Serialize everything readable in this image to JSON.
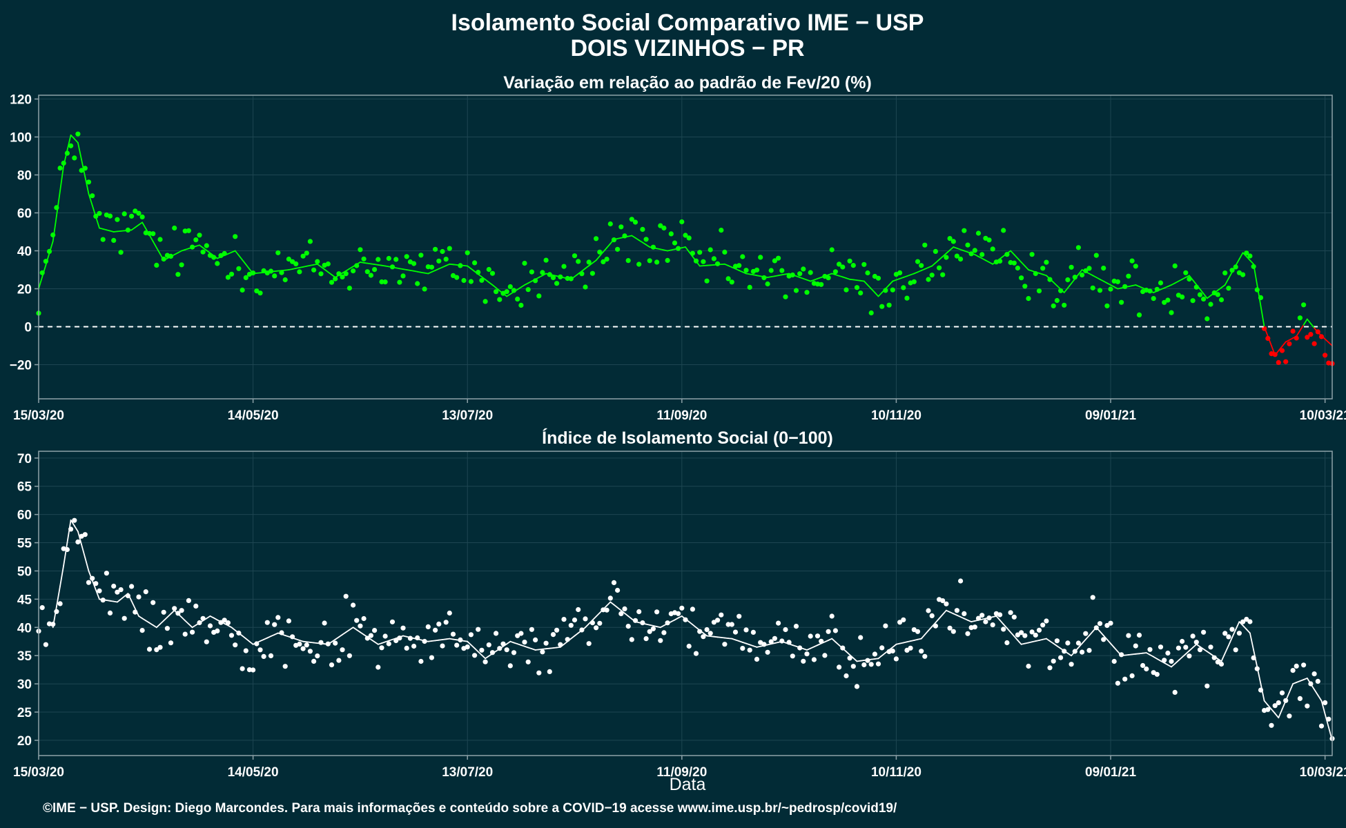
{
  "title_line1": "Isolamento Social Comparativo IME − USP",
  "title_line2": "DOIS VIZINHOS − PR",
  "xlabel": "Data",
  "footer": "©IME − USP. Design: Diego Marcondes. Para mais informações e conteúdo sobre a COVID−19 acesse www.ime.usp.br/~pedrosp/covid19/",
  "colors": {
    "background": "#022b36",
    "positive": "#00ff00",
    "negative": "#ff0000",
    "index": "#ffffff",
    "grid": "#1e4652",
    "frame": "#8fa3a9"
  },
  "chart_data": [
    {
      "type": "scatter",
      "title": "Variação em relação ao padrão de Fev/20 (%)",
      "xlabel": "",
      "ylabel": "",
      "x_start": "15/03/20",
      "x_end": "12/03/21",
      "x_ticks": [
        "15/03/20",
        "14/05/20",
        "13/07/20",
        "11/09/20",
        "10/11/20",
        "09/01/21",
        "10/03/21"
      ],
      "ylim": [
        -38,
        122
      ],
      "y_ticks": [
        "−20",
        "0",
        "20",
        "40",
        "60",
        "80",
        "100",
        "120"
      ],
      "reference_line": 0,
      "grid": true,
      "color_rule": "points and smoothed line are green when value >= 0, red when value < 0",
      "moving_average_anchors": [
        [
          "15/03/20",
          20
        ],
        [
          "19/03/20",
          45
        ],
        [
          "22/03/20",
          85
        ],
        [
          "24/03/20",
          101
        ],
        [
          "26/03/20",
          97
        ],
        [
          "29/03/20",
          70
        ],
        [
          "01/04/20",
          52
        ],
        [
          "05/04/20",
          50
        ],
        [
          "10/04/20",
          51
        ],
        [
          "13/04/20",
          55
        ],
        [
          "16/04/20",
          45
        ],
        [
          "19/04/20",
          35
        ],
        [
          "24/04/20",
          40
        ],
        [
          "29/04/20",
          43
        ],
        [
          "04/05/20",
          36
        ],
        [
          "09/05/20",
          40
        ],
        [
          "14/05/20",
          28
        ],
        [
          "24/05/20",
          30
        ],
        [
          "01/06/20",
          33
        ],
        [
          "06/06/20",
          26
        ],
        [
          "13/06/20",
          34
        ],
        [
          "20/06/20",
          32
        ],
        [
          "26/06/20",
          30
        ],
        [
          "02/07/20",
          28
        ],
        [
          "08/07/20",
          33
        ],
        [
          "13/07/20",
          32
        ],
        [
          "20/07/20",
          22
        ],
        [
          "24/07/20",
          16
        ],
        [
          "29/07/20",
          22
        ],
        [
          "04/08/20",
          28
        ],
        [
          "11/08/20",
          25
        ],
        [
          "18/08/20",
          35
        ],
        [
          "23/08/20",
          46
        ],
        [
          "28/08/20",
          48
        ],
        [
          "02/09/20",
          42
        ],
        [
          "07/09/20",
          40
        ],
        [
          "12/09/20",
          42
        ],
        [
          "16/09/20",
          32
        ],
        [
          "23/09/20",
          33
        ],
        [
          "29/09/20",
          28
        ],
        [
          "05/10/20",
          26
        ],
        [
          "11/10/20",
          28
        ],
        [
          "17/10/20",
          24
        ],
        [
          "23/10/20",
          28
        ],
        [
          "28/10/20",
          25
        ],
        [
          "01/11/20",
          24
        ],
        [
          "05/11/20",
          16
        ],
        [
          "09/11/20",
          24
        ],
        [
          "15/11/20",
          28
        ],
        [
          "20/11/20",
          32
        ],
        [
          "26/11/20",
          42
        ],
        [
          "02/12/20",
          38
        ],
        [
          "07/12/20",
          33
        ],
        [
          "12/12/20",
          40
        ],
        [
          "17/12/20",
          30
        ],
        [
          "22/12/20",
          27
        ],
        [
          "27/12/20",
          18
        ],
        [
          "01/01/21",
          30
        ],
        [
          "06/01/21",
          25
        ],
        [
          "11/01/21",
          20
        ],
        [
          "16/01/21",
          22
        ],
        [
          "21/01/21",
          18
        ],
        [
          "26/01/21",
          22
        ],
        [
          "31/01/21",
          27
        ],
        [
          "05/02/21",
          15
        ],
        [
          "10/02/21",
          22
        ],
        [
          "15/02/21",
          39
        ],
        [
          "18/02/21",
          33
        ],
        [
          "21/02/21",
          0
        ],
        [
          "24/02/21",
          -15
        ],
        [
          "27/02/21",
          -8
        ],
        [
          "02/03/21",
          -5
        ],
        [
          "05/03/21",
          4
        ],
        [
          "08/03/21",
          -3
        ],
        [
          "12/03/21",
          -10
        ]
      ]
    },
    {
      "type": "scatter",
      "title": "Índice de Isolamento Social (0−100)",
      "xlabel": "Data",
      "ylabel": "",
      "x_start": "15/03/20",
      "x_end": "12/03/21",
      "x_ticks": [
        "15/03/20",
        "14/05/20",
        "13/07/20",
        "11/09/20",
        "10/11/20",
        "09/01/21",
        "10/03/21"
      ],
      "ylim": [
        17.3,
        71.2
      ],
      "y_ticks": [
        "20",
        "25",
        "30",
        "35",
        "40",
        "45",
        "50",
        "55",
        "60",
        "65",
        "70"
      ],
      "grid": true,
      "moving_average_anchors": [
        [
          "19/03/20",
          40
        ],
        [
          "22/03/20",
          51
        ],
        [
          "24/03/20",
          59
        ],
        [
          "26/03/20",
          57
        ],
        [
          "29/03/20",
          50
        ],
        [
          "01/04/20",
          45
        ],
        [
          "06/04/20",
          44.5
        ],
        [
          "09/04/20",
          46
        ],
        [
          "12/04/20",
          42
        ],
        [
          "17/04/20",
          40
        ],
        [
          "22/04/20",
          43
        ],
        [
          "27/04/20",
          40
        ],
        [
          "02/05/20",
          42
        ],
        [
          "08/05/20",
          40
        ],
        [
          "14/05/20",
          37
        ],
        [
          "21/05/20",
          39
        ],
        [
          "28/05/20",
          37.5
        ],
        [
          "04/06/20",
          37
        ],
        [
          "11/06/20",
          40
        ],
        [
          "18/06/20",
          37
        ],
        [
          "25/06/20",
          38.5
        ],
        [
          "02/07/20",
          37.5
        ],
        [
          "08/07/20",
          38
        ],
        [
          "13/07/20",
          37.5
        ],
        [
          "18/07/20",
          34.5
        ],
        [
          "25/07/20",
          37.5
        ],
        [
          "01/08/20",
          36
        ],
        [
          "08/08/20",
          36.5
        ],
        [
          "15/08/20",
          40
        ],
        [
          "22/08/20",
          44.5
        ],
        [
          "29/08/20",
          41
        ],
        [
          "05/09/20",
          40
        ],
        [
          "11/09/20",
          42
        ],
        [
          "18/09/20",
          38.5
        ],
        [
          "25/09/20",
          38
        ],
        [
          "02/10/20",
          36.5
        ],
        [
          "09/10/20",
          37.5
        ],
        [
          "16/10/20",
          36
        ],
        [
          "23/10/20",
          38
        ],
        [
          "30/10/20",
          34
        ],
        [
          "05/11/20",
          34.5
        ],
        [
          "10/11/20",
          37
        ],
        [
          "17/11/20",
          38
        ],
        [
          "24/11/20",
          43
        ],
        [
          "01/12/20",
          41
        ],
        [
          "08/12/20",
          42
        ],
        [
          "15/12/20",
          37
        ],
        [
          "22/12/20",
          38
        ],
        [
          "29/12/20",
          35
        ],
        [
          "05/01/21",
          40
        ],
        [
          "12/01/21",
          35
        ],
        [
          "19/01/21",
          35.5
        ],
        [
          "26/01/21",
          33
        ],
        [
          "02/02/21",
          37
        ],
        [
          "09/02/21",
          34
        ],
        [
          "14/02/21",
          41
        ],
        [
          "17/02/21",
          39
        ],
        [
          "21/02/21",
          27
        ],
        [
          "25/02/21",
          24
        ],
        [
          "01/03/21",
          30
        ],
        [
          "05/03/21",
          31
        ],
        [
          "09/03/21",
          27
        ],
        [
          "12/03/21",
          20
        ]
      ]
    }
  ]
}
